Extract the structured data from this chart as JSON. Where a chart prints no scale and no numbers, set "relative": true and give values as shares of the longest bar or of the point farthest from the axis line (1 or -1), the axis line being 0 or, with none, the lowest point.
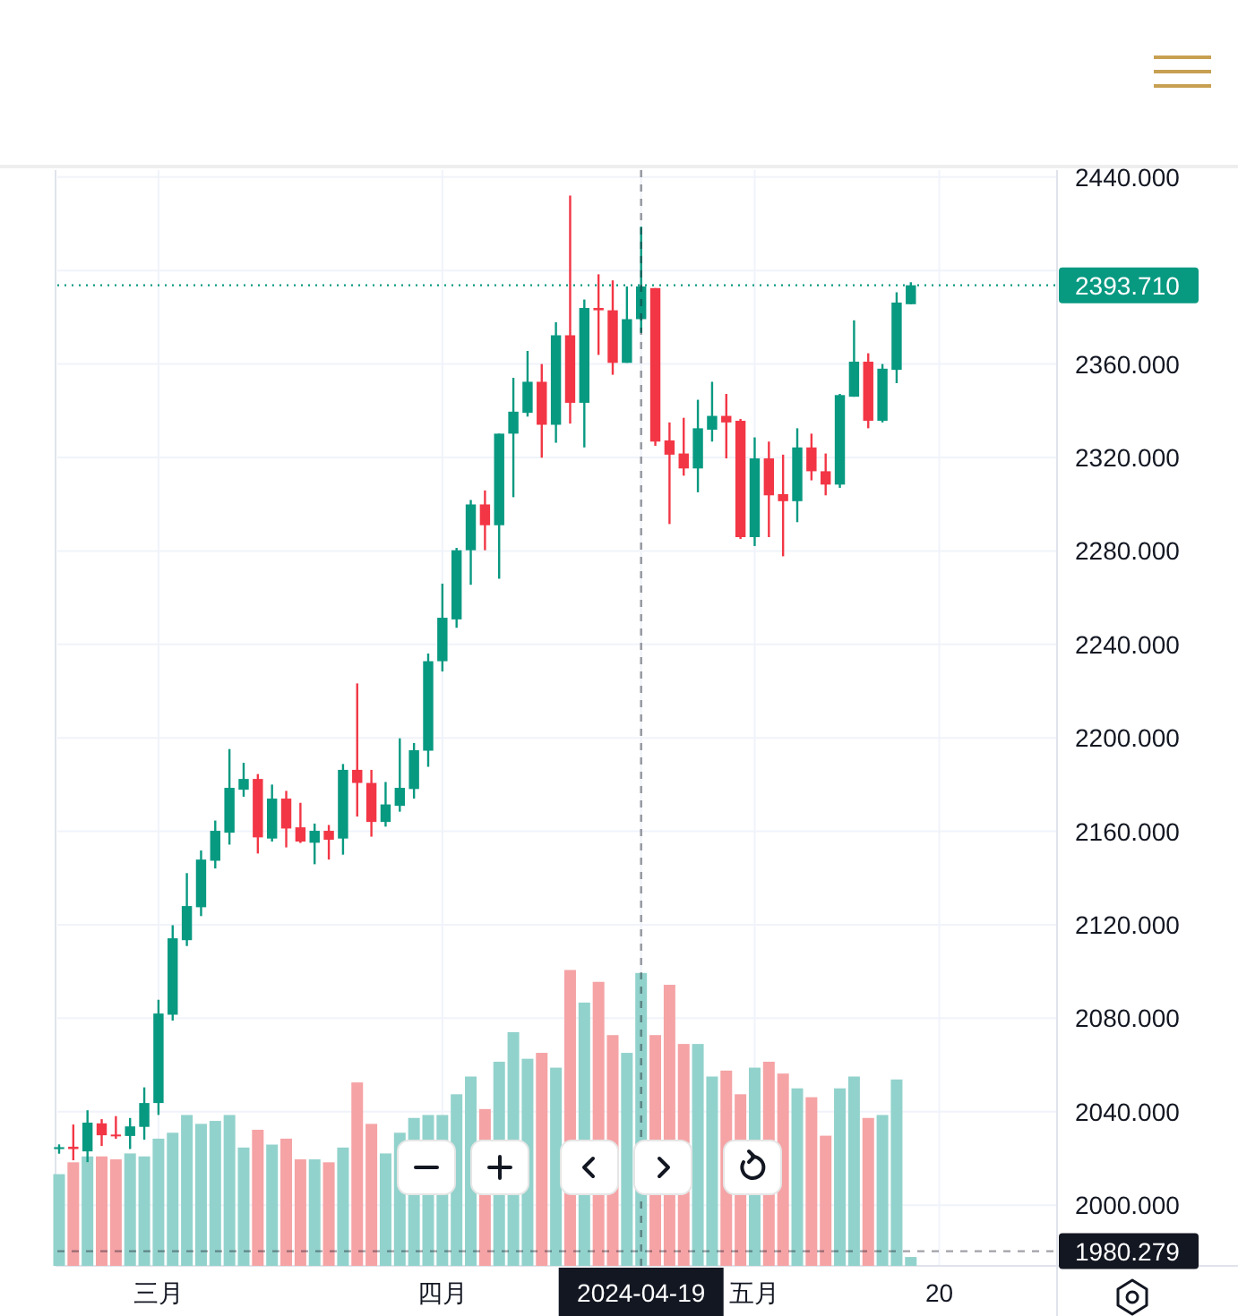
{
  "chart_data": [
    {
      "type": "candlestick",
      "categories": [
        null,
        null,
        null,
        null,
        null,
        null,
        null,
        "三月",
        null,
        null,
        null,
        null,
        null,
        null,
        null,
        null,
        null,
        null,
        null,
        null,
        null,
        null,
        null,
        null,
        null,
        null,
        null,
        "四月",
        null,
        null,
        null,
        null,
        null,
        null,
        null,
        null,
        null,
        null,
        null,
        null,
        null,
        "2024-04-19",
        null,
        null,
        null,
        null,
        null,
        null,
        null,
        "五月",
        null,
        null,
        null,
        null,
        null,
        null,
        null,
        null,
        null,
        null,
        null,
        null,
        "20"
      ],
      "ohlc": [
        [
          2024.0,
          2026.0,
          2022.0,
          2024.8
        ],
        [
          2025.0,
          2034.5,
          2019.2,
          2024.0
        ],
        [
          2023.0,
          2040.6,
          2018.4,
          2035.3
        ],
        [
          2035.0,
          2036.8,
          2025.3,
          2029.9
        ],
        [
          2030.2,
          2038.1,
          2028.4,
          2029.5
        ],
        [
          2029.6,
          2037.3,
          2024.0,
          2033.7
        ],
        [
          2033.5,
          2050.4,
          2028.0,
          2043.7
        ],
        [
          2043.7,
          2087.9,
          2038.6,
          2082.0
        ],
        [
          2081.5,
          2119.8,
          2079.0,
          2114.2
        ],
        [
          2113.4,
          2142.1,
          2110.9,
          2128.0
        ],
        [
          2127.5,
          2151.8,
          2123.7,
          2147.9
        ],
        [
          2147.4,
          2164.6,
          2144.1,
          2160.2
        ],
        [
          2159.4,
          2195.2,
          2154.3,
          2178.6
        ],
        [
          2177.8,
          2189.3,
          2174.8,
          2182.4
        ],
        [
          2182.4,
          2184.5,
          2150.5,
          2157.4
        ],
        [
          2156.9,
          2180.0,
          2155.6,
          2174.0
        ],
        [
          2174.0,
          2177.3,
          2153.1,
          2161.2
        ],
        [
          2161.7,
          2172.2,
          2155.0,
          2155.6
        ],
        [
          2155.1,
          2163.3,
          2145.9,
          2160.2
        ],
        [
          2160.2,
          2162.7,
          2147.9,
          2156.4
        ],
        [
          2156.9,
          2188.8,
          2150.0,
          2186.3
        ],
        [
          2186.3,
          2223.3,
          2166.3,
          2180.7
        ],
        [
          2180.7,
          2186.3,
          2157.7,
          2164.0
        ],
        [
          2164.0,
          2181.1,
          2162.0,
          2171.5
        ],
        [
          2170.9,
          2199.8,
          2168.4,
          2178.6
        ],
        [
          2178.1,
          2197.8,
          2174.0,
          2194.7
        ],
        [
          2194.5,
          2236.1,
          2187.6,
          2232.8
        ],
        [
          2232.8,
          2266.0,
          2228.4,
          2251.4
        ],
        [
          2250.7,
          2281.3,
          2247.1,
          2280.3
        ],
        [
          2280.3,
          2301.8,
          2265.5,
          2299.9
        ],
        [
          2299.9,
          2305.9,
          2280.3,
          2291.0
        ],
        [
          2291.0,
          2330.2,
          2268.1,
          2330.2
        ],
        [
          2330.2,
          2354.1,
          2303.0,
          2339.6
        ],
        [
          2339.1,
          2365.6,
          2337.5,
          2352.4
        ],
        [
          2352.4,
          2360.0,
          2319.9,
          2334.0
        ],
        [
          2334.0,
          2377.9,
          2326.3,
          2372.3
        ],
        [
          2372.3,
          2432.1,
          2334.5,
          2343.4
        ],
        [
          2343.4,
          2387.6,
          2324.3,
          2384.0
        ],
        [
          2384.0,
          2398.4,
          2363.9,
          2383.0
        ],
        [
          2383.0,
          2395.8,
          2355.4,
          2360.5
        ],
        [
          2360.5,
          2393.2,
          2360.5,
          2379.2
        ],
        [
          2379.2,
          2418.8,
          2373.3,
          2393.2
        ],
        [
          2392.5,
          2392.5,
          2325.0,
          2326.8
        ],
        [
          2327.3,
          2335.0,
          2291.5,
          2321.2
        ],
        [
          2321.7,
          2337.0,
          2312.2,
          2315.3
        ],
        [
          2315.3,
          2344.7,
          2305.1,
          2332.5
        ],
        [
          2331.9,
          2352.4,
          2326.8,
          2337.8
        ],
        [
          2337.8,
          2347.2,
          2319.6,
          2335.0
        ],
        [
          2335.7,
          2336.5,
          2285.1,
          2285.9
        ],
        [
          2285.9,
          2328.6,
          2282.1,
          2319.6
        ],
        [
          2319.6,
          2326.8,
          2285.9,
          2303.8
        ],
        [
          2304.3,
          2321.2,
          2277.7,
          2301.3
        ],
        [
          2301.3,
          2332.5,
          2292.3,
          2324.3
        ],
        [
          2324.3,
          2330.2,
          2310.2,
          2314.1
        ],
        [
          2314.1,
          2321.7,
          2303.8,
          2308.4
        ],
        [
          2308.4,
          2347.2,
          2307.0,
          2346.7
        ],
        [
          2346.0,
          2378.7,
          2346.0,
          2361.0
        ],
        [
          2361.0,
          2364.6,
          2332.5,
          2335.7
        ],
        [
          2335.7,
          2360.0,
          2335.0,
          2358.0
        ],
        [
          2357.5,
          2390.7,
          2351.8,
          2386.3
        ],
        [
          2385.6,
          2395.0,
          2385.6,
          2393.71
        ],
        null,
        null
      ],
      "colors": [
        "#089981",
        "#f23645",
        "#089981",
        "#f23645",
        "#f23645",
        "#089981",
        "#089981",
        "#089981",
        "#089981",
        "#089981",
        "#089981",
        "#089981",
        "#089981",
        "#089981",
        "#f23645",
        "#089981",
        "#f23645",
        "#f23645",
        "#089981",
        "#f23645",
        "#089981",
        "#f23645",
        "#f23645",
        "#089981",
        "#089981",
        "#089981",
        "#089981",
        "#089981",
        "#089981",
        "#089981",
        "#f23645",
        "#089981",
        "#089981",
        "#089981",
        "#f23645",
        "#089981",
        "#f23645",
        "#089981",
        "#f23645",
        "#f23645",
        "#089981",
        "#089981",
        "#f23645",
        "#f23645",
        "#f23645",
        "#089981",
        "#089981",
        "#f23645",
        "#f23645",
        "#089981",
        "#f23645",
        "#f23645",
        "#089981",
        "#f23645",
        "#f23645",
        "#089981",
        "#089981",
        "#f23645",
        "#089981",
        "#089981",
        "#089981",
        null,
        null
      ],
      "ylim": [
        1974,
        2443
      ],
      "yticks": [
        {
          "value": 2000,
          "label": "2000.000"
        },
        {
          "value": 2040,
          "label": "2040.000"
        },
        {
          "value": 2080,
          "label": "2080.000"
        },
        {
          "value": 2120,
          "label": "2120.000"
        },
        {
          "value": 2160,
          "label": "2160.000"
        },
        {
          "value": 2200,
          "label": "2200.000"
        },
        {
          "value": 2240,
          "label": "2240.000"
        },
        {
          "value": 2280,
          "label": "2280.000"
        },
        {
          "value": 2320,
          "label": "2320.000"
        },
        {
          "value": 2360,
          "label": "2360.000"
        },
        {
          "value": 2400,
          "label": null
        },
        {
          "value": 2440,
          "label": "2440.000"
        }
      ],
      "grid": true,
      "ref_lines": [
        {
          "axis": "y",
          "value": 2393.71,
          "label": "2393.710",
          "color": "#089981",
          "line_style": "dotted"
        },
        {
          "axis": "y",
          "value": 1980.279,
          "label": "1980.279",
          "color": "#131722",
          "line_style": "dashed"
        },
        {
          "axis": "x",
          "value": "2024-04-19",
          "color": "#131722",
          "line_style": "dashed"
        }
      ]
    },
    {
      "type": "bar",
      "relative": true,
      "categories": [
        null,
        null,
        null,
        null,
        null,
        null,
        null,
        null,
        null,
        null,
        null,
        null,
        null,
        null,
        null,
        null,
        null,
        null,
        null,
        null,
        null,
        null,
        null,
        null,
        null,
        null,
        null,
        null,
        null,
        null,
        null,
        null,
        null,
        null,
        null,
        null,
        null,
        null,
        null,
        null,
        null,
        null,
        null,
        null,
        null,
        null,
        null,
        null,
        null,
        null,
        null,
        null,
        null,
        null,
        null,
        null,
        null,
        null,
        null,
        null,
        null,
        null,
        null
      ],
      "values": [
        0.31,
        0.35,
        0.37,
        0.37,
        0.36,
        0.38,
        0.37,
        0.43,
        0.45,
        0.51,
        0.48,
        0.49,
        0.51,
        0.4,
        0.46,
        0.41,
        0.43,
        0.36,
        0.36,
        0.35,
        0.4,
        0.62,
        0.48,
        0.38,
        0.45,
        0.5,
        0.51,
        0.51,
        0.58,
        0.64,
        0.53,
        0.69,
        0.79,
        0.7,
        0.72,
        0.67,
        1.0,
        0.89,
        0.96,
        0.78,
        0.72,
        0.99,
        0.78,
        0.95,
        0.75,
        0.75,
        0.64,
        0.66,
        0.58,
        0.67,
        0.69,
        0.65,
        0.6,
        0.57,
        0.44,
        0.6,
        0.64,
        0.5,
        0.51,
        0.63,
        0.03,
        null,
        null
      ],
      "colors": [
        "#92d2cc",
        "#f5a3a5",
        "#92d2cc",
        "#f5a3a5",
        "#f5a3a5",
        "#92d2cc",
        "#92d2cc",
        "#92d2cc",
        "#92d2cc",
        "#92d2cc",
        "#92d2cc",
        "#92d2cc",
        "#92d2cc",
        "#92d2cc",
        "#f5a3a5",
        "#92d2cc",
        "#f5a3a5",
        "#f5a3a5",
        "#92d2cc",
        "#f5a3a5",
        "#92d2cc",
        "#f5a3a5",
        "#f5a3a5",
        "#92d2cc",
        "#92d2cc",
        "#92d2cc",
        "#92d2cc",
        "#92d2cc",
        "#92d2cc",
        "#92d2cc",
        "#f5a3a5",
        "#92d2cc",
        "#92d2cc",
        "#92d2cc",
        "#f5a3a5",
        "#92d2cc",
        "#f5a3a5",
        "#92d2cc",
        "#f5a3a5",
        "#f5a3a5",
        "#92d2cc",
        "#92d2cc",
        "#f5a3a5",
        "#f5a3a5",
        "#f5a3a5",
        "#92d2cc",
        "#92d2cc",
        "#f5a3a5",
        "#f5a3a5",
        "#92d2cc",
        "#f5a3a5",
        "#f5a3a5",
        "#92d2cc",
        "#f5a3a5",
        "#f5a3a5",
        "#92d2cc",
        "#92d2cc",
        "#f5a3a5",
        "#92d2cc",
        "#92d2cc",
        "#92d2cc",
        null,
        null
      ]
    }
  ]
}
